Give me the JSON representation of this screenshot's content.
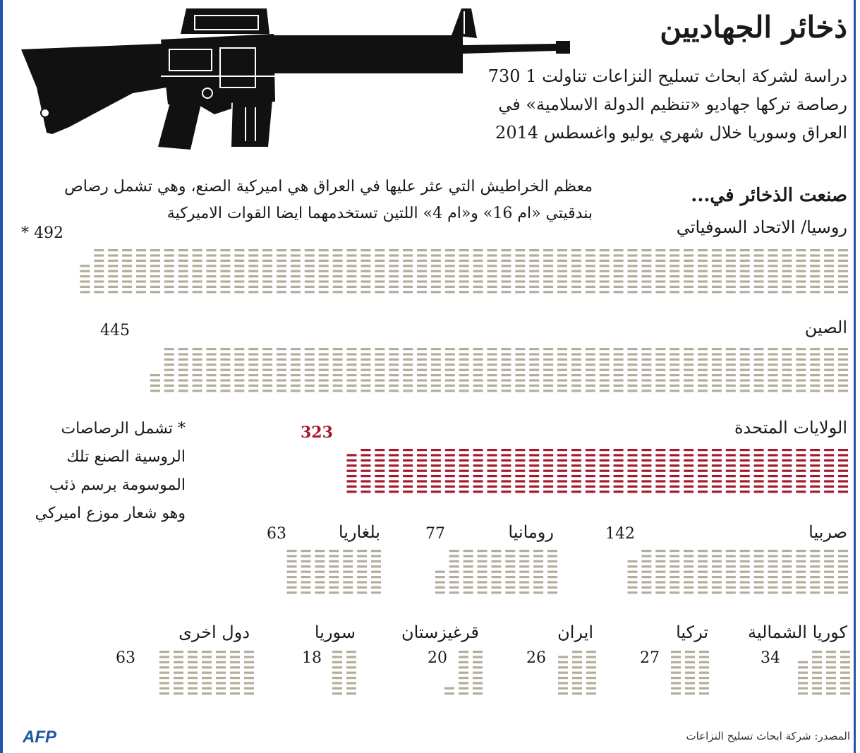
{
  "title": "ذخائر الجهاديين",
  "intro": "دراسة لشركة ابحاث تسليح النزاعات تناولت 1 730 رصاصة تركها جهاديو «تنظيم الدولة الاسلامية» في العراق وسوريا خلال شهري يوليو واغسطس 2014",
  "note": "معظم الخراطيش التي عثر عليها في العراق هي اميركية الصنع، وهي تشمل رصاص بندقيتي «ام 16» و«ام 4» اللتين تستخدمهما ايضا القوات الاميركية",
  "made_in_heading": "صنعت الذخائر في...",
  "footnote": "* تشمل الرصاصات الروسية الصنع تلك الموسومة برسم ذئب وهو شعار موزع اميركي",
  "source": "المصدر: شركة ابحاث تسليح النزاعات",
  "logo": "AFP",
  "colors": {
    "bullet": "#b3ad9c",
    "highlight": "#a5192a",
    "text": "#1a1a1a",
    "frame": "#1f57a8"
  },
  "chart_data": {
    "type": "bar",
    "title": "ذخائر الجهاديين",
    "unit": "رصاصة",
    "categories": [
      "روسيا/ الاتحاد السوفياتي",
      "الصين",
      "الولايات المتحدة",
      "صربيا",
      "رومانيا",
      "بلغاريا",
      "كوريا الشمالية",
      "تركيا",
      "ايران",
      "قرغيزستان",
      "سوريا",
      "دول اخرى"
    ],
    "values": [
      492,
      445,
      323,
      142,
      77,
      63,
      34,
      27,
      26,
      20,
      18,
      63
    ],
    "value_labels": [
      "* 492",
      "445",
      "323",
      "142",
      "77",
      "63",
      "34",
      "27",
      "26",
      "20",
      "18",
      "63"
    ],
    "highlight": "الولايات المتحدة"
  }
}
